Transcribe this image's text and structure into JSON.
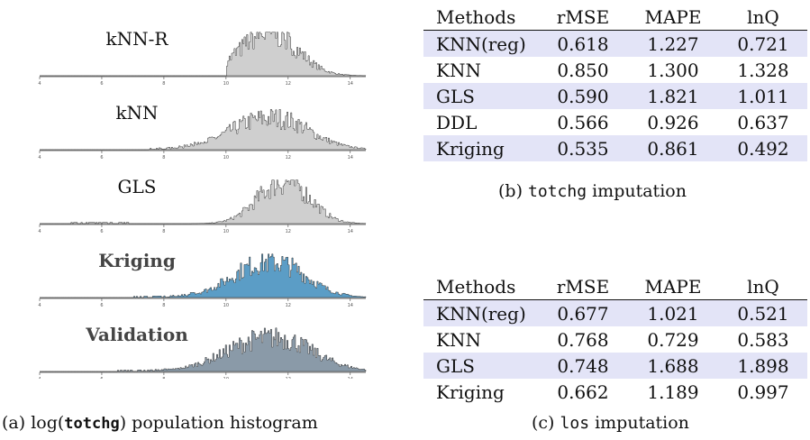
{
  "histogram_panel": {
    "panels": [
      {
        "label": "kNN-R",
        "bold": false,
        "color": "#cfcfcf"
      },
      {
        "label": "kNN",
        "bold": false,
        "color": "#cfcfcf"
      },
      {
        "label": "GLS",
        "bold": false,
        "color": "#cfcfcf"
      },
      {
        "label": "Kriging",
        "bold": true,
        "color": "#5b9dc6"
      },
      {
        "label": "Validation",
        "bold": true,
        "color": "#8a9aa8"
      }
    ],
    "x_ticks": [
      "4",
      "6",
      "8",
      "10",
      "12",
      "14"
    ],
    "caption_prefix": "(a) ",
    "caption_math": "log(",
    "caption_code": "totchg",
    "caption_suffix": ") population histogram"
  },
  "chart_data": [
    {
      "type": "bar",
      "title": "kNN-R",
      "x_range": [
        4,
        14.5
      ],
      "shape": {
        "center": 11.3,
        "spread": 0.9,
        "peak": 1.0,
        "start": 10.0
      }
    },
    {
      "type": "bar",
      "title": "kNN",
      "x_range": [
        4,
        14.5
      ],
      "shape": {
        "center": 11.3,
        "spread": 1.2,
        "peak": 0.75,
        "start": 7.5
      }
    },
    {
      "type": "bar",
      "title": "GLS",
      "x_range": [
        4,
        14.5
      ],
      "shape": {
        "center": 11.8,
        "spread": 0.8,
        "peak": 1.0,
        "start": 5.0
      }
    },
    {
      "type": "bar",
      "title": "Kriging",
      "x_range": [
        4,
        14.5
      ],
      "shape": {
        "center": 11.3,
        "spread": 1.1,
        "peak": 0.85,
        "start": 7.0
      }
    },
    {
      "type": "bar",
      "title": "Validation",
      "x_range": [
        4,
        14.5
      ],
      "shape": {
        "center": 11.3,
        "spread": 1.3,
        "peak": 0.8,
        "start": 6.5
      }
    }
  ],
  "table_b": {
    "headers": [
      "Methods",
      "rMSE",
      "MAPE",
      "lnQ"
    ],
    "rows": [
      [
        "KNN(reg)",
        "0.618",
        "1.227",
        "0.721"
      ],
      [
        "KNN",
        "0.850",
        "1.300",
        "1.328"
      ],
      [
        "GLS",
        "0.590",
        "1.821",
        "1.011"
      ],
      [
        "DDL",
        "0.566",
        "0.926",
        "0.637"
      ],
      [
        "Kriging",
        "0.535",
        "0.861",
        "0.492"
      ]
    ],
    "caption_prefix": "(b) ",
    "caption_code": "totchg",
    "caption_suffix": " imputation",
    "shade_color": "#e3e4f7"
  },
  "table_c": {
    "headers": [
      "Methods",
      "rMSE",
      "MAPE",
      "lnQ"
    ],
    "rows": [
      [
        "KNN(reg)",
        "0.677",
        "1.021",
        "0.521"
      ],
      [
        "KNN",
        "0.768",
        "0.729",
        "0.583"
      ],
      [
        "GLS",
        "0.748",
        "1.688",
        "1.898"
      ],
      [
        "Kriging",
        "0.662",
        "1.189",
        "0.997"
      ]
    ],
    "caption_prefix": "(c) ",
    "caption_code": "los",
    "caption_suffix": " imputation"
  }
}
